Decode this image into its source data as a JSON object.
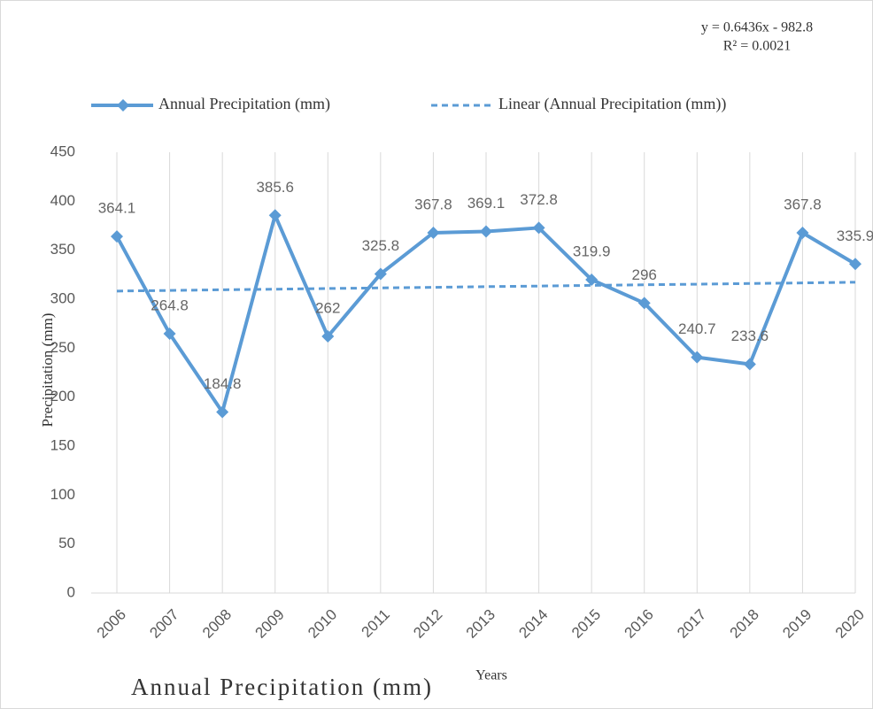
{
  "chart_data": {
    "type": "line",
    "title": "Annual Precipitation (mm)",
    "x_label": "Years",
    "y_label": "Precipitation (mm)",
    "equation": "y = 0.6436x - 982.8",
    "r_squared": "R² = 0.0021",
    "categories": [
      "2006",
      "2007",
      "2008",
      "2009",
      "2010",
      "2011",
      "2012",
      "2013",
      "2014",
      "2015",
      "2016",
      "2017",
      "2018",
      "2019",
      "2020"
    ],
    "series": [
      {
        "name": "Annual Precipitation (mm)",
        "color": "#5b9bd5",
        "dashed": false,
        "markers": true,
        "values": [
          364.1,
          264.8,
          184.8,
          385.6,
          262,
          325.8,
          367.8,
          369.1,
          372.8,
          319.9,
          296,
          240.7,
          233.6,
          367.8,
          335.9
        ]
      },
      {
        "name": "Linear (Annual Precipitation (mm))",
        "color": "#5b9bd5",
        "dashed": true,
        "markers": false,
        "values": [
          308.3,
          308.9,
          309.6,
          310.2,
          310.9,
          311.5,
          312.1,
          312.8,
          313.4,
          314.1,
          314.7,
          315.3,
          316.0,
          316.6,
          317.3
        ]
      }
    ],
    "data_labels_series": 0,
    "ylim": [
      0,
      450
    ],
    "yticks": [
      0,
      50,
      100,
      150,
      200,
      250,
      300,
      350,
      400,
      450
    ],
    "grid": "x"
  }
}
